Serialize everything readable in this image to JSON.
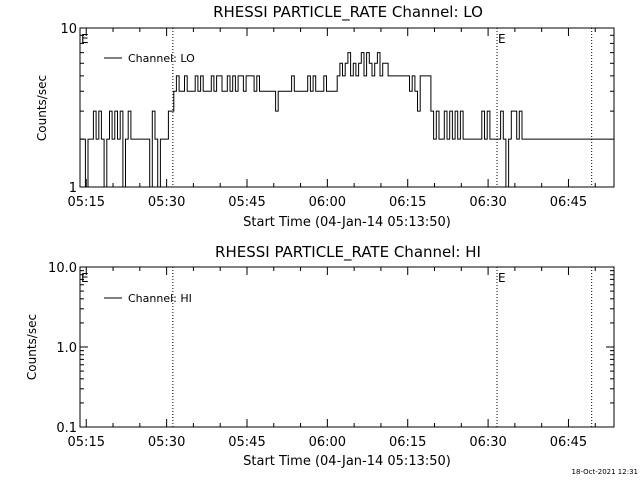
{
  "chart_data": [
    {
      "type": "line",
      "title": "RHESSI PARTICLE_RATE Channel: LO",
      "xlabel": "Start Time (04-Jan-14 05:13:50)",
      "ylabel": "Counts/sec",
      "yscale": "log",
      "ylim": [
        1,
        10
      ],
      "xlim": [
        "05:13:50",
        "06:53:30"
      ],
      "xticks": [
        "05:15",
        "05:30",
        "05:45",
        "06:00",
        "06:15",
        "06:30",
        "06:45"
      ],
      "yticks": [
        "1",
        "10"
      ],
      "legend": "top-left",
      "series": [
        {
          "name": "Channel: LO",
          "color": "#000000",
          "x_minutes_after_start": [
            0,
            0.5,
            1,
            1.5,
            2,
            2.5,
            3,
            3.5,
            4,
            4.5,
            5,
            5.5,
            6,
            6.5,
            7,
            7.5,
            8,
            8.5,
            9,
            9.5,
            10,
            10.5,
            11,
            11.5,
            12,
            12.5,
            13,
            13.5,
            14,
            14.5,
            15,
            15.5,
            16,
            16.5,
            17,
            17.5,
            18,
            18.5,
            19,
            19.5,
            20,
            20.5,
            21,
            21.5,
            22,
            22.5,
            23,
            23.5,
            24,
            24.5,
            25,
            25.5,
            26,
            26.5,
            27,
            27.5,
            28,
            28.5,
            29,
            29.5,
            30,
            30.5,
            31,
            31.5,
            32,
            32.5,
            33,
            33.5,
            34,
            34.5,
            35,
            35.5,
            36,
            36.5,
            37,
            37.5,
            38,
            38.5,
            39,
            39.5,
            40,
            40.5,
            41,
            41.5,
            42,
            42.5,
            43,
            43.5,
            44,
            44.5,
            45,
            45.5,
            46,
            46.5,
            47,
            47.5,
            48,
            48.5,
            49,
            49.5,
            50,
            50.5,
            51,
            51.5,
            52,
            52.5,
            53,
            53.5,
            54,
            54.5,
            55,
            55.5,
            56,
            56.5,
            57,
            57.5,
            58,
            58.5,
            59,
            59.5,
            60,
            60.5,
            61,
            61.5,
            62,
            62.5,
            63,
            63.5,
            64,
            64.5,
            65,
            65.5,
            66,
            66.5,
            67,
            67.5,
            68,
            68.5,
            69,
            69.5,
            70,
            70.5,
            71,
            71.5,
            72,
            72.5,
            73,
            73.5,
            74,
            74.5,
            75,
            75.5,
            76,
            76.5,
            77,
            77.5,
            78,
            78.5,
            79,
            79.5,
            80,
            80.5,
            81,
            81.5,
            82,
            82.5,
            83,
            83.5,
            84,
            84.5,
            85,
            85.5,
            86,
            86.5,
            87,
            87.5,
            88,
            88.5,
            89,
            89.5,
            90,
            90.5,
            91,
            91.5,
            92,
            92.5,
            93,
            93.5,
            94,
            94.5,
            95,
            95.5,
            96,
            96.5,
            97,
            97.5,
            98,
            98.5,
            99
          ],
          "values": [
            2,
            2,
            1,
            2,
            2,
            3,
            2,
            3,
            2,
            1,
            2,
            3,
            2,
            3,
            2,
            3,
            1,
            2,
            3,
            2,
            2,
            2,
            2,
            2,
            2,
            2,
            1,
            3,
            2,
            1,
            2,
            2,
            2,
            3,
            3,
            4,
            5,
            4,
            4,
            5,
            4,
            4,
            4,
            5,
            4,
            5,
            4,
            4,
            4,
            5,
            4,
            5,
            5,
            4,
            4,
            5,
            4,
            5,
            4,
            5,
            5,
            4,
            5,
            5,
            5,
            4,
            5,
            4,
            4,
            4,
            4,
            4,
            4,
            3,
            4,
            4,
            4,
            4,
            4,
            5,
            4,
            4,
            4,
            4,
            4,
            5,
            4,
            5,
            4,
            4,
            4,
            5,
            4,
            4,
            4,
            4,
            5,
            6,
            5,
            6,
            7,
            5,
            6,
            5,
            6,
            7,
            5,
            7,
            6,
            5,
            6,
            7,
            5,
            6,
            6,
            5,
            5,
            5,
            5,
            5,
            5,
            5,
            5,
            4,
            5,
            4,
            3,
            5,
            5,
            5,
            5,
            3,
            2,
            3,
            2,
            2,
            3,
            2,
            3,
            2,
            3,
            2,
            3,
            2,
            2,
            2,
            2,
            2,
            2,
            2,
            3,
            2,
            3,
            2,
            2,
            2,
            2,
            3,
            2,
            1,
            2,
            3,
            3,
            2,
            3,
            2,
            2,
            2,
            2,
            2,
            2,
            2,
            2,
            2,
            2,
            2,
            2,
            2,
            2,
            2,
            2,
            2,
            2,
            2,
            2,
            2,
            2,
            2,
            2,
            2,
            2,
            2,
            2,
            2,
            2,
            2,
            2,
            2,
            2,
            2,
            2,
            2,
            2
          ]
        }
      ],
      "markers": [
        {
          "label": "E",
          "time": "05:13:50",
          "kind": "text"
        },
        {
          "label": "E",
          "time": "06:31:40",
          "kind": "text"
        }
      ],
      "vlines_times": [
        "05:31:10",
        "06:31:40",
        "06:49:20"
      ]
    },
    {
      "type": "line",
      "title": "RHESSI PARTICLE_RATE Channel: HI",
      "xlabel": "Start Time (04-Jan-14 05:13:50)",
      "ylabel": "Counts/sec",
      "yscale": "log",
      "ylim": [
        0.1,
        10
      ],
      "xlim": [
        "05:13:50",
        "06:53:30"
      ],
      "xticks": [
        "05:15",
        "05:30",
        "05:45",
        "06:00",
        "06:15",
        "06:30",
        "06:45"
      ],
      "yticks": [
        "0.1",
        "1.0",
        "10.0"
      ],
      "legend": "top-left",
      "series": [
        {
          "name": "Channel: HI",
          "color": "#000000",
          "values": []
        }
      ],
      "markers": [
        {
          "label": "E",
          "time": "05:13:50",
          "kind": "text"
        },
        {
          "label": "E",
          "time": "06:31:40",
          "kind": "text"
        }
      ],
      "vlines_times": [
        "05:31:10",
        "06:31:40",
        "06:49:20"
      ]
    }
  ],
  "footer": {
    "timestamp": "18-Oct-2021 12:31"
  }
}
